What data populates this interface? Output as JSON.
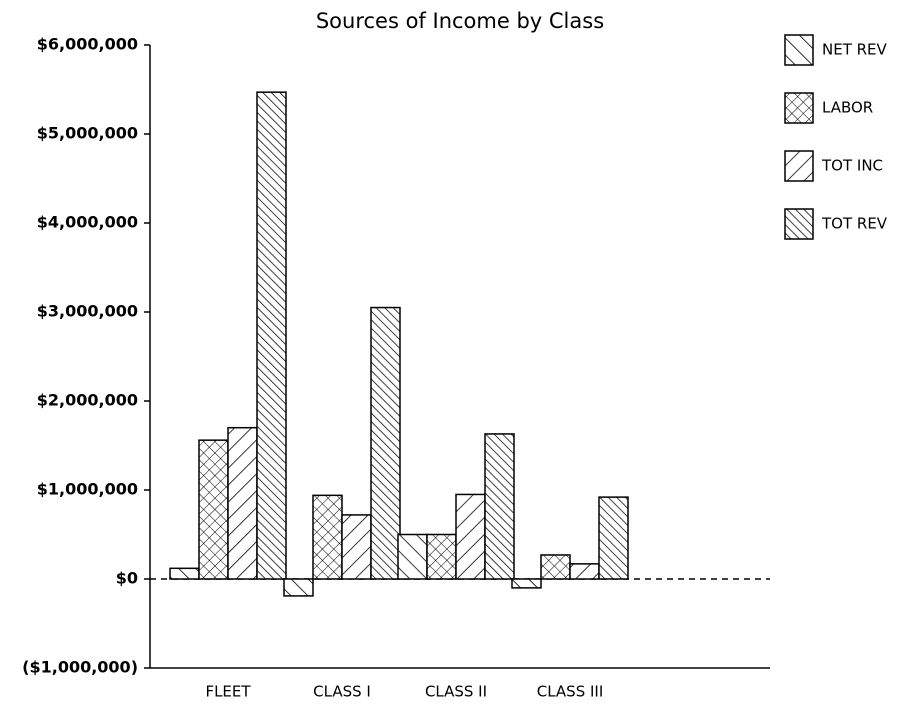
{
  "chart_data": {
    "type": "bar",
    "title": "Sources of Income by Class",
    "categories": [
      "FLEET",
      "CLASS I",
      "CLASS II",
      "CLASS III"
    ],
    "series": [
      {
        "name": "NET REV",
        "color": "#000000",
        "hatch": "back",
        "values": [
          120000,
          -190000,
          500000,
          -100000
        ]
      },
      {
        "name": "LABOR",
        "color": "#000000",
        "hatch": "cross",
        "values": [
          1560000,
          940000,
          500000,
          270000
        ]
      },
      {
        "name": "TOT INC",
        "color": "#000000",
        "hatch": "forward",
        "values": [
          1700000,
          720000,
          950000,
          170000
        ]
      },
      {
        "name": "TOT REV",
        "color": "#000000",
        "hatch": "back-dense",
        "values": [
          5470000,
          3050000,
          1630000,
          920000
        ]
      }
    ],
    "ylim": [
      -1000000,
      6000000
    ],
    "yticks": [
      {
        "value": -1000000,
        "label": "($1,000,000)"
      },
      {
        "value": 0,
        "label": "$0"
      },
      {
        "value": 1000000,
        "label": "$1,000,000"
      },
      {
        "value": 2000000,
        "label": "$2,000,000"
      },
      {
        "value": 3000000,
        "label": "$3,000,000"
      },
      {
        "value": 4000000,
        "label": "$4,000,000"
      },
      {
        "value": 5000000,
        "label": "$5,000,000"
      },
      {
        "value": 6000000,
        "label": "$6,000,000"
      }
    ],
    "grid": false,
    "legend": "right"
  }
}
